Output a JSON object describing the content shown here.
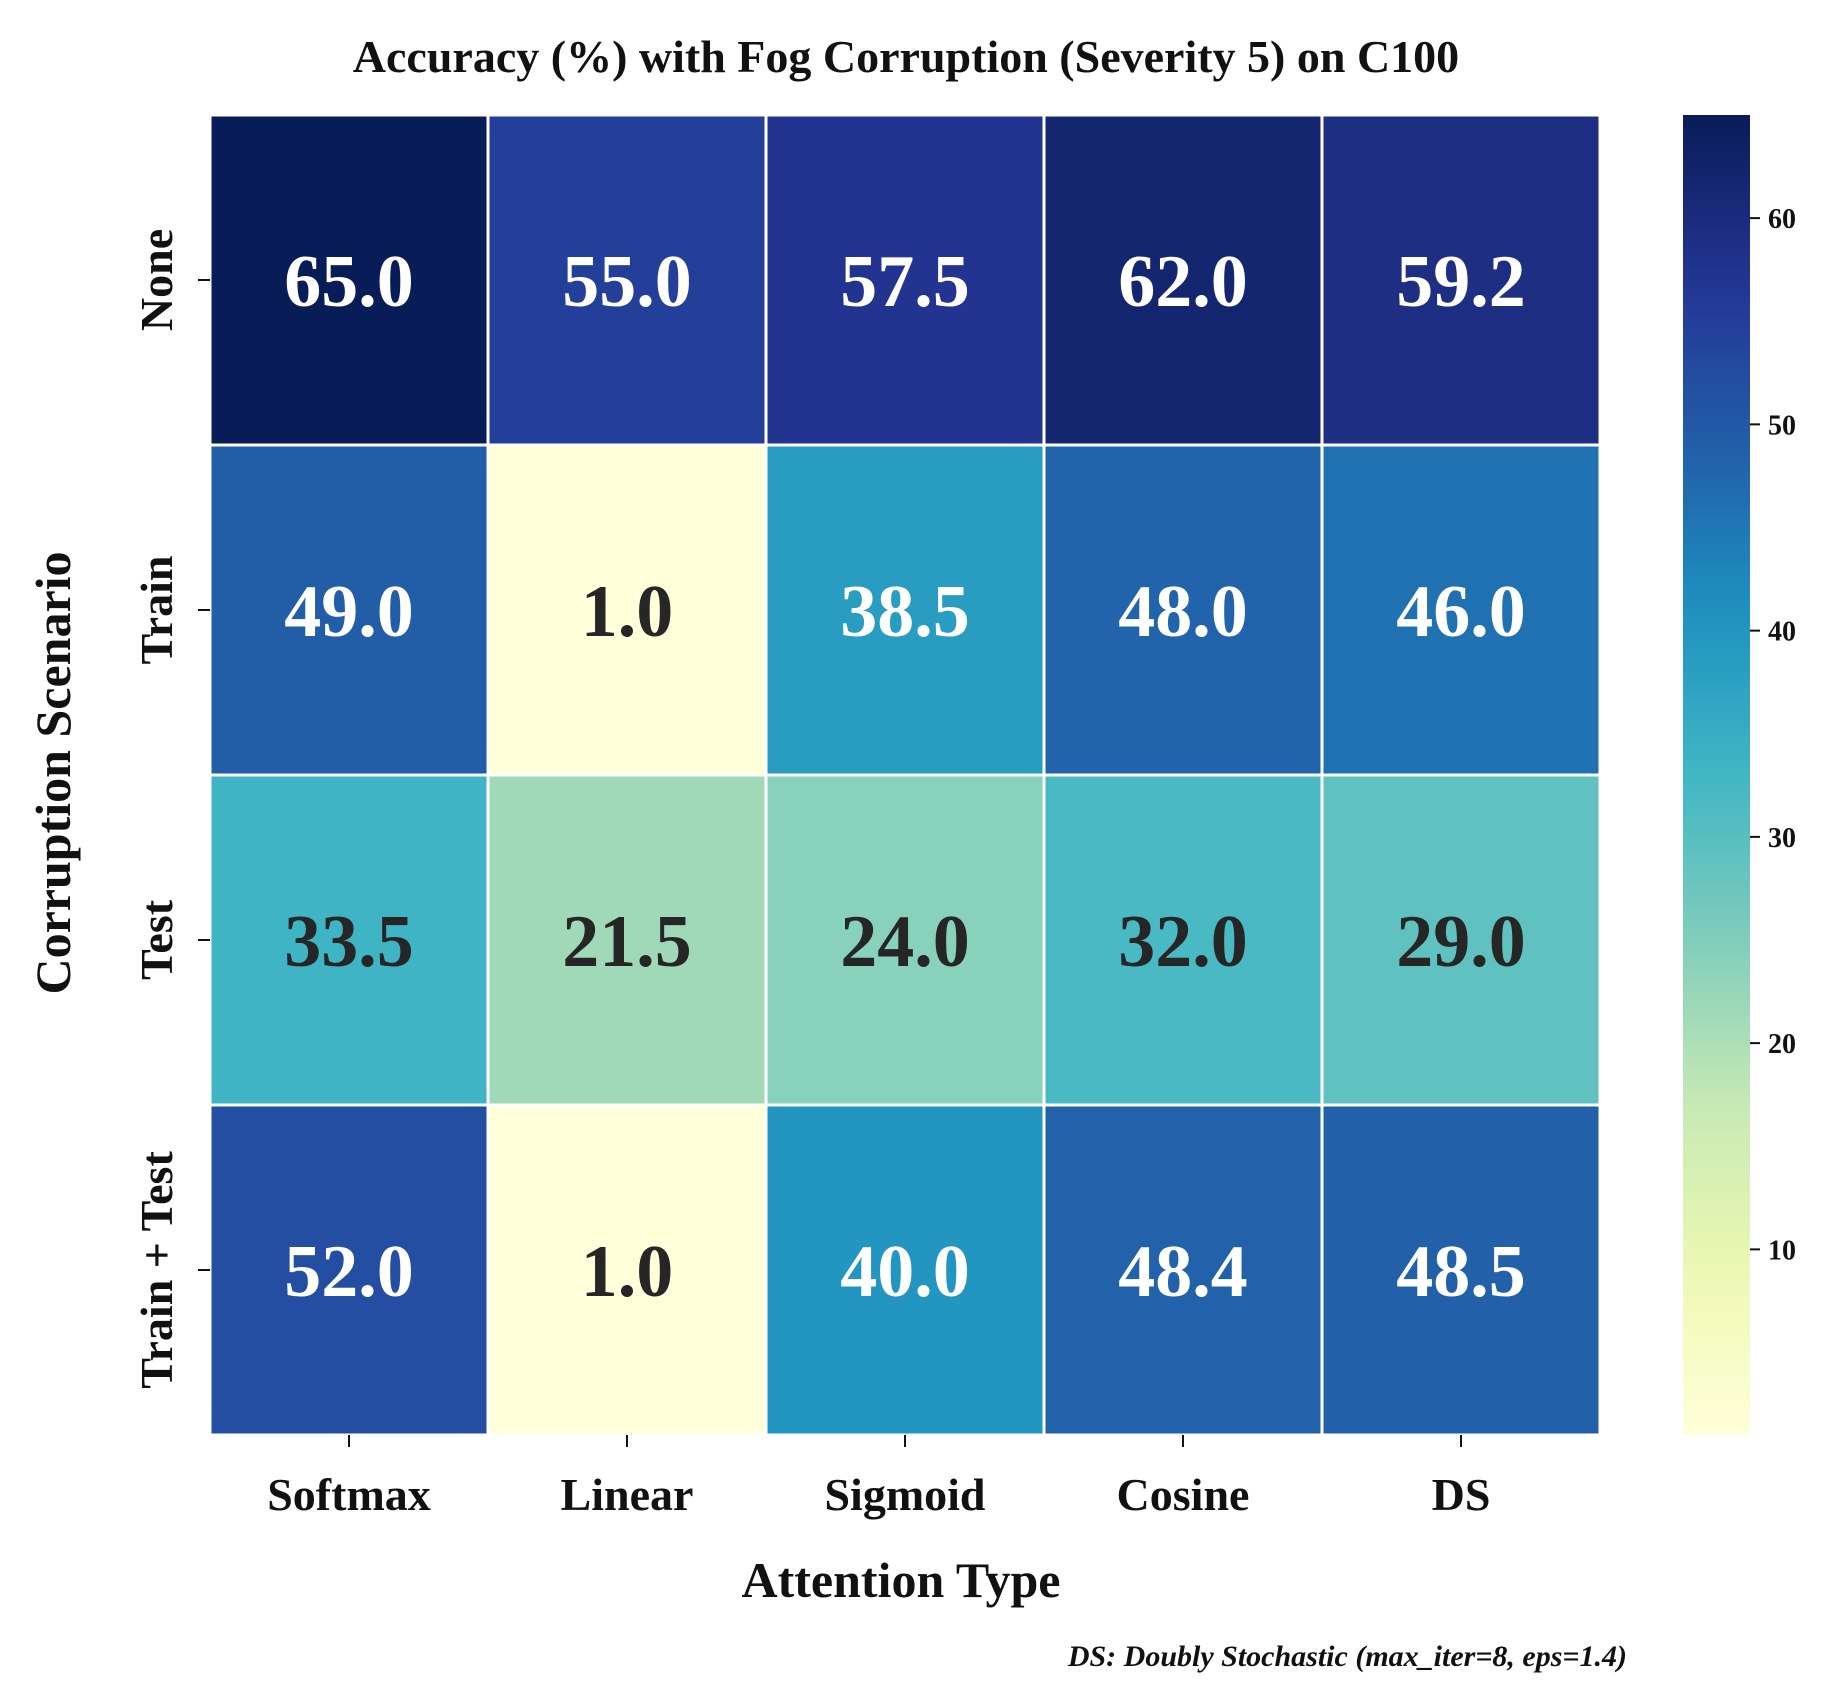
{
  "chart_data": {
    "type": "heatmap",
    "title": "Accuracy (%) with Fog Corruption (Severity 5) on C100",
    "xlabel": "Attention Type",
    "ylabel": "Corruption Scenario",
    "x_categories": [
      "Softmax",
      "Linear",
      "Sigmoid",
      "Cosine",
      "DS"
    ],
    "y_categories": [
      "None",
      "Train",
      "Test",
      "Train + Test"
    ],
    "values": [
      [
        65.0,
        55.0,
        57.5,
        62.0,
        59.2
      ],
      [
        49.0,
        1.0,
        38.5,
        48.0,
        46.0
      ],
      [
        33.5,
        21.5,
        24.0,
        32.0,
        29.0
      ],
      [
        52.0,
        1.0,
        40.0,
        48.4,
        48.5
      ]
    ],
    "cell_labels": [
      [
        "65.0",
        "55.0",
        "57.5",
        "62.0",
        "59.2"
      ],
      [
        "49.0",
        "1.0",
        "38.5",
        "48.0",
        "46.0"
      ],
      [
        "33.5",
        "21.5",
        "24.0",
        "32.0",
        "29.0"
      ],
      [
        "52.0",
        "1.0",
        "40.0",
        "48.4",
        "48.5"
      ]
    ],
    "colormap": "YlGnBu",
    "color_range": [
      1.0,
      65.0
    ],
    "colorbar_ticks": [
      10,
      20,
      30,
      40,
      50,
      60
    ],
    "colorbar_tick_labels": [
      "10",
      "20",
      "30",
      "40",
      "50",
      "60"
    ],
    "footnote": "DS: Doubly Stochastic (max_iter=8, eps=1.4)"
  },
  "colors": {
    "text_light": "#ffffff",
    "text_dark": "#262626",
    "gridline": "#ffffff"
  }
}
